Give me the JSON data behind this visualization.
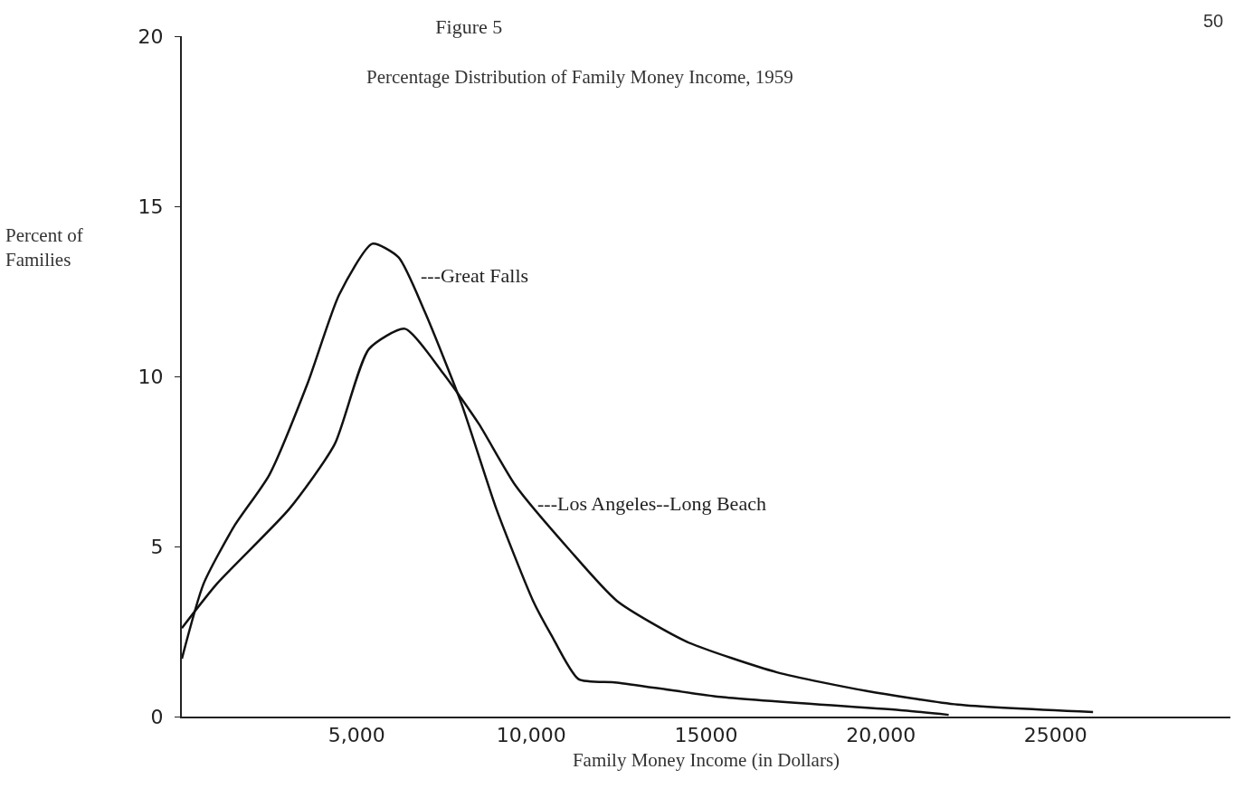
{
  "chart_data": {
    "type": "line",
    "title": "Figure 5",
    "subtitle": "Percentage Distribution of Family Money Income, 1959",
    "xlabel": "Family Money Income (in Dollars)",
    "ylabel": "Percent of Families",
    "annotations": [
      "50"
    ],
    "series": [
      {
        "name": "---Great Falls",
        "color": "#111111",
        "x": [
          0,
          620,
          1500,
          2500,
          3600,
          4500,
          5450,
          6200,
          6950,
          8000,
          9000,
          10050,
          10570,
          11350,
          12450,
          15480,
          20650,
          21940
        ],
        "values": [
          1.7,
          3.9,
          5.6,
          7.1,
          9.8,
          12.4,
          13.9,
          13.5,
          11.9,
          9.2,
          6.1,
          3.4,
          2.4,
          1.1,
          1.0,
          0.57,
          0.18,
          0.05
        ]
      },
      {
        "name": "---Los Angeles--Long Beach",
        "color": "#111111",
        "x": [
          0,
          1000,
          3070,
          4370,
          5350,
          6380,
          7470,
          8500,
          9540,
          11090,
          12450,
          14450,
          17030,
          19600,
          22200,
          26070
        ],
        "values": [
          2.6,
          3.9,
          6.1,
          8.0,
          10.8,
          11.4,
          10.1,
          8.6,
          6.8,
          4.9,
          3.4,
          2.2,
          1.3,
          0.75,
          0.35,
          0.13
        ]
      }
    ],
    "xlim": [
      0,
      30000
    ],
    "xticks": [
      {
        "value": 5000,
        "label": "5,000"
      },
      {
        "value": 10000,
        "label": "10,000"
      },
      {
        "value": 15000,
        "label": "15000"
      },
      {
        "value": 20000,
        "label": "20,000"
      },
      {
        "value": 25000,
        "label": "25000"
      }
    ],
    "ylim": [
      0,
      20
    ],
    "yticks": [
      0,
      5,
      10,
      15,
      20
    ],
    "grid": false,
    "legend": false,
    "marker": "none",
    "line_style": "solid"
  }
}
